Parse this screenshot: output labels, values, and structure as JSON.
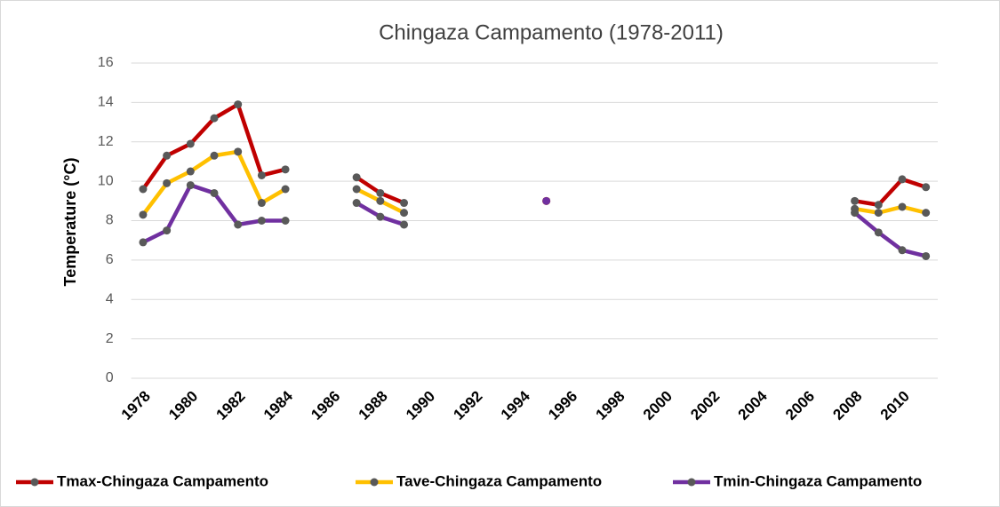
{
  "chart_data": {
    "type": "line",
    "title": "Chingaza Campamento (1978-2011)",
    "y_label": "Temperature (°C)",
    "categories": [
      "1978",
      null,
      "1980",
      null,
      "1982",
      null,
      "1984",
      null,
      "1986",
      null,
      "1988",
      null,
      "1990",
      null,
      "1992",
      null,
      "1994",
      null,
      "1996",
      null,
      "1998",
      null,
      "2000",
      null,
      "2002",
      null,
      "2004",
      null,
      "2006",
      null,
      "2008",
      null,
      "2010",
      null
    ],
    "series": [
      {
        "name": "Tmax-Chingaza Campamento",
        "color": "#c00000",
        "values": [
          9.6,
          11.3,
          11.9,
          13.2,
          13.9,
          10.3,
          10.6,
          null,
          null,
          10.2,
          9.4,
          8.9,
          null,
          null,
          null,
          null,
          null,
          9.0,
          null,
          null,
          null,
          null,
          null,
          null,
          null,
          null,
          null,
          null,
          null,
          null,
          9.0,
          8.8,
          10.1,
          9.7
        ]
      },
      {
        "name": "Tave-Chingaza Campamento",
        "color": "#ffc000",
        "values": [
          8.3,
          9.9,
          10.5,
          11.3,
          11.5,
          8.9,
          9.6,
          null,
          null,
          9.6,
          9.0,
          8.4,
          null,
          null,
          null,
          null,
          null,
          9.0,
          null,
          null,
          null,
          null,
          null,
          null,
          null,
          null,
          null,
          null,
          null,
          null,
          8.6,
          8.4,
          8.7,
          8.4
        ]
      },
      {
        "name": "Tmin-Chingaza Campamento",
        "color": "#7030a0",
        "values": [
          6.9,
          7.5,
          9.8,
          9.4,
          7.8,
          8.0,
          8.0,
          null,
          null,
          8.9,
          8.2,
          7.8,
          null,
          null,
          null,
          null,
          null,
          9.0,
          null,
          null,
          null,
          null,
          null,
          null,
          null,
          null,
          null,
          null,
          null,
          null,
          8.4,
          7.4,
          6.5,
          6.2
        ]
      }
    ],
    "marker_color": "#595959",
    "ylim": [
      0,
      16
    ],
    "yticks": [
      0,
      2,
      4,
      6,
      8,
      10,
      12,
      14,
      16
    ],
    "grid": true,
    "legend": "bottom"
  }
}
